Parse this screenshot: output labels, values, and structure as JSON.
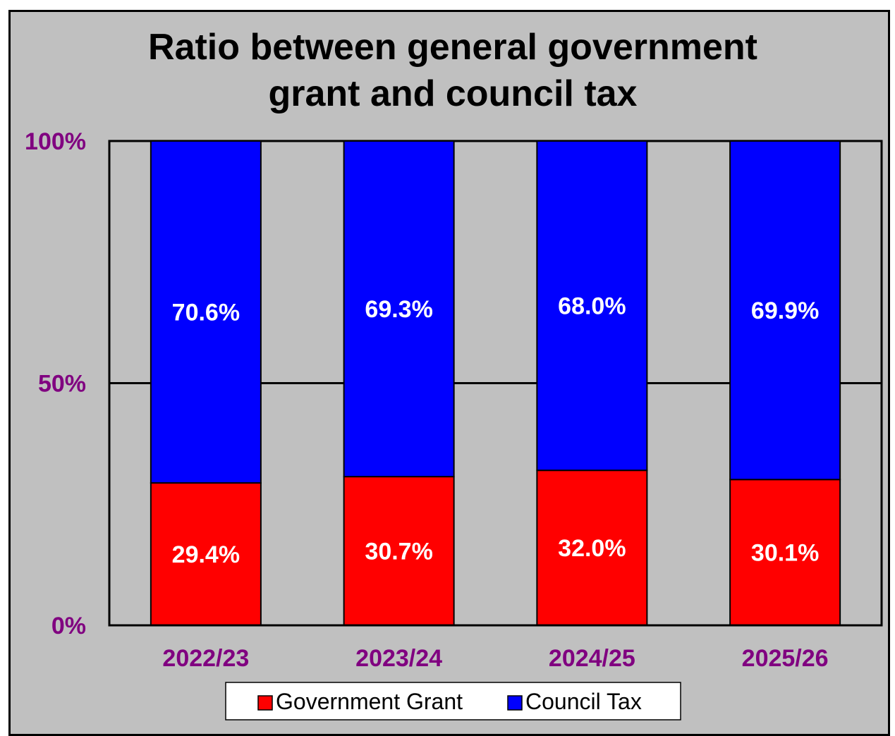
{
  "colors": {
    "background": "#c0c0c0",
    "axis_text": "#800080",
    "grant": "#ff0000",
    "council_tax": "#0000ff",
    "label": "#ffffff"
  },
  "chart_data": {
    "type": "bar",
    "stacked": true,
    "title_lines": [
      "Ratio between general government",
      "grant and council tax"
    ],
    "xlabel": "",
    "ylabel": "",
    "ylim": [
      0,
      100
    ],
    "yticks": [
      0,
      50,
      100
    ],
    "ytick_labels": [
      "0%",
      "50%",
      "100%"
    ],
    "grid": true,
    "legend_position": "bottom",
    "categories": [
      "2022/23",
      "2023/24",
      "2024/25",
      "2025/26"
    ],
    "series": [
      {
        "name": "Government Grant",
        "color": "#ff0000",
        "values": [
          29.4,
          30.7,
          32.0,
          30.1
        ],
        "labels": [
          "29.4%",
          "30.7%",
          "32.0%",
          "30.1%"
        ]
      },
      {
        "name": "Council Tax",
        "color": "#0000ff",
        "values": [
          70.6,
          69.3,
          68.0,
          69.9
        ],
        "labels": [
          "70.6%",
          "69.3%",
          "68.0%",
          "69.9%"
        ]
      }
    ]
  }
}
